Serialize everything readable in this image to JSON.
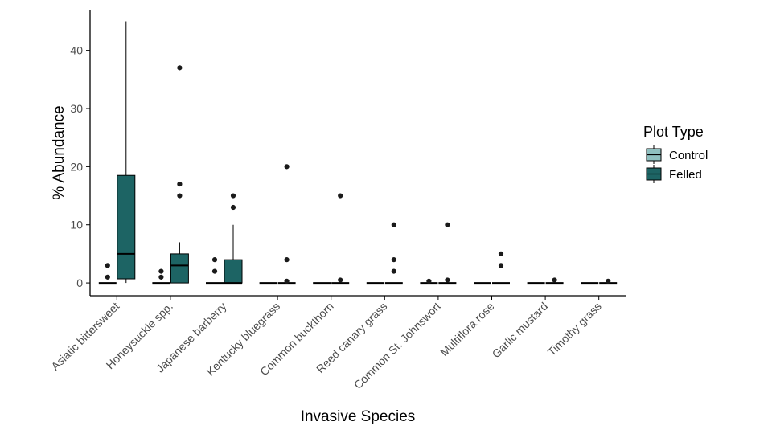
{
  "chart_data": {
    "type": "box",
    "xlabel": "Invasive Species",
    "ylabel": "% Abundance",
    "ylim": [
      -2.2,
      47
    ],
    "yticks": [
      0,
      10,
      20,
      30,
      40
    ],
    "grid": false,
    "legend": {
      "title": "Plot Type",
      "position": "right",
      "entries": [
        "Control",
        "Felled"
      ]
    },
    "categories": [
      "Asiatic bittersweet",
      "Honeysuckle spp.",
      "Japanese barberry",
      "Kentucky bluegrass",
      "Common buckthorn",
      "Reed canary grass",
      "Common St. Johnswort",
      "Multiflora rose",
      "Garlic mustard",
      "Timothy grass"
    ],
    "series": [
      {
        "name": "Control",
        "color": "#8fbfbf",
        "boxes": [
          {
            "min": 0,
            "q1": 0,
            "median": 0,
            "q3": 0,
            "max": 0,
            "outliers": [
              1,
              3
            ]
          },
          {
            "min": 0,
            "q1": 0,
            "median": 0,
            "q3": 0,
            "max": 0,
            "outliers": [
              1,
              2
            ]
          },
          {
            "min": 0,
            "q1": 0,
            "median": 0,
            "q3": 0,
            "max": 0,
            "outliers": [
              2,
              4
            ]
          },
          {
            "min": 0,
            "q1": 0,
            "median": 0,
            "q3": 0,
            "max": 0,
            "outliers": []
          },
          {
            "min": 0,
            "q1": 0,
            "median": 0,
            "q3": 0,
            "max": 0,
            "outliers": []
          },
          {
            "min": 0,
            "q1": 0,
            "median": 0,
            "q3": 0,
            "max": 0,
            "outliers": []
          },
          {
            "min": 0,
            "q1": 0,
            "median": 0,
            "q3": 0,
            "max": 0,
            "outliers": [
              0.3
            ]
          },
          {
            "min": 0,
            "q1": 0,
            "median": 0,
            "q3": 0,
            "max": 0,
            "outliers": []
          },
          {
            "min": 0,
            "q1": 0,
            "median": 0,
            "q3": 0,
            "max": 0,
            "outliers": []
          },
          {
            "min": 0,
            "q1": 0,
            "median": 0,
            "q3": 0,
            "max": 0,
            "outliers": []
          }
        ]
      },
      {
        "name": "Felled",
        "color": "#1d6464",
        "boxes": [
          {
            "min": 0,
            "q1": 0.7,
            "median": 5,
            "q3": 18.5,
            "max": 45,
            "outliers": []
          },
          {
            "min": 0,
            "q1": 0,
            "median": 3,
            "q3": 5,
            "max": 7,
            "outliers": [
              15,
              17,
              37
            ]
          },
          {
            "min": 0,
            "q1": 0,
            "median": 0,
            "q3": 4,
            "max": 10,
            "outliers": [
              13,
              15
            ]
          },
          {
            "min": 0,
            "q1": 0,
            "median": 0,
            "q3": 0,
            "max": 0,
            "outliers": [
              0.3,
              4,
              20
            ]
          },
          {
            "min": 0,
            "q1": 0,
            "median": 0,
            "q3": 0,
            "max": 0,
            "outliers": [
              0.5,
              15
            ]
          },
          {
            "min": 0,
            "q1": 0,
            "median": 0,
            "q3": 0,
            "max": 0,
            "outliers": [
              2,
              4,
              10
            ]
          },
          {
            "min": 0,
            "q1": 0,
            "median": 0,
            "q3": 0,
            "max": 0,
            "outliers": [
              0.5,
              10
            ]
          },
          {
            "min": 0,
            "q1": 0,
            "median": 0,
            "q3": 0,
            "max": 0,
            "outliers": [
              3,
              5
            ]
          },
          {
            "min": 0,
            "q1": 0,
            "median": 0,
            "q3": 0,
            "max": 0,
            "outliers": [
              0.5
            ]
          },
          {
            "min": 0,
            "q1": 0,
            "median": 0,
            "q3": 0,
            "max": 0,
            "outliers": [
              0.3
            ]
          }
        ]
      }
    ]
  }
}
